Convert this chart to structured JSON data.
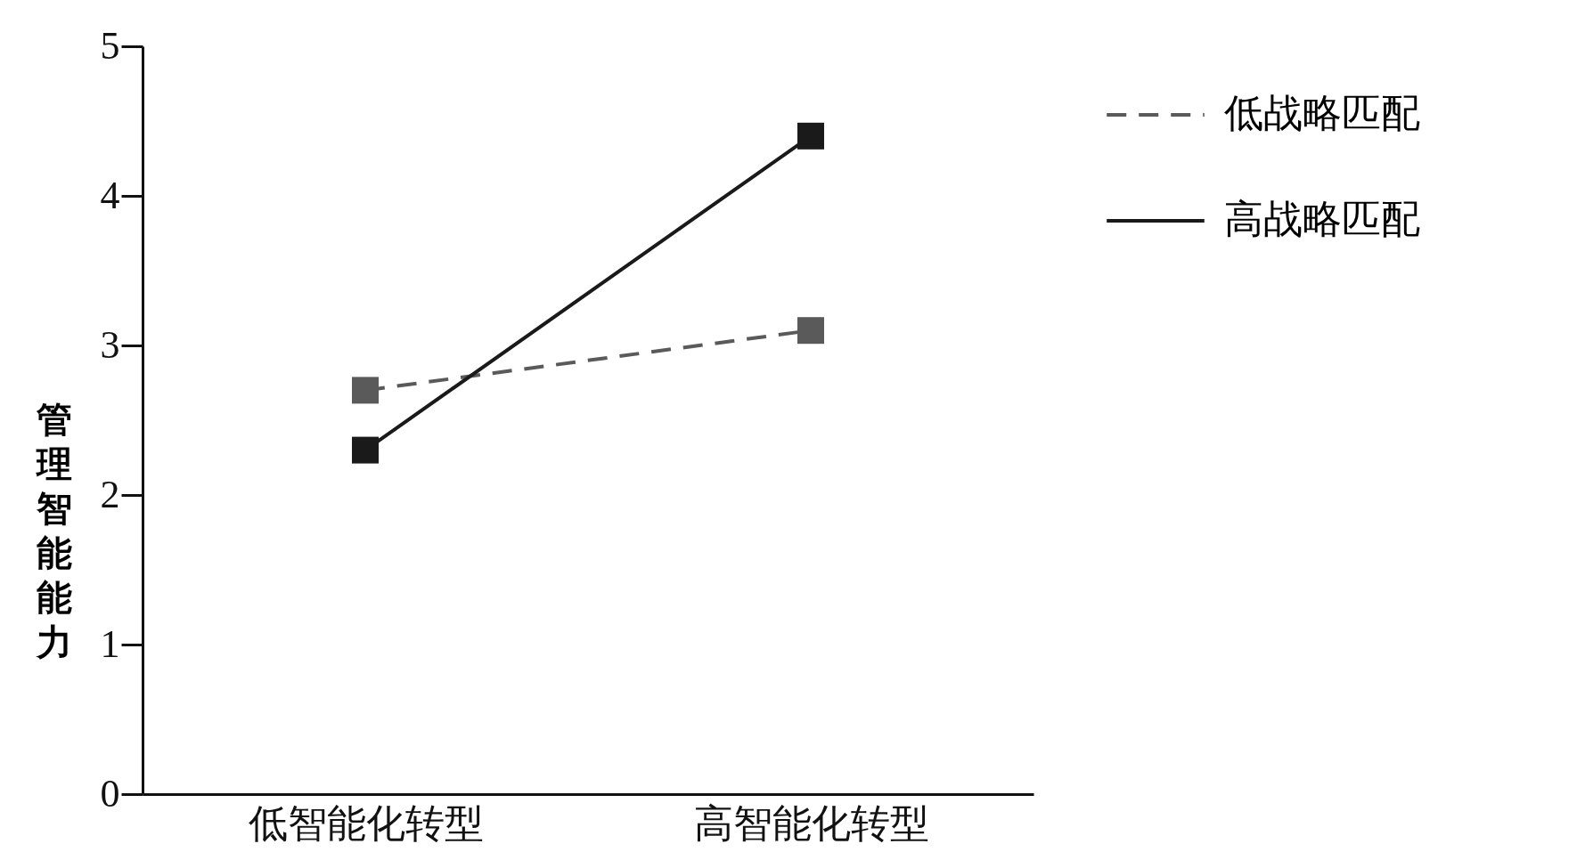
{
  "chart_data": {
    "type": "line",
    "ylabel": "管理智能能力",
    "categories": [
      "低智能化转型",
      "高智能化转型"
    ],
    "series": [
      {
        "name": "低战略匹配",
        "color": "#5a5a5a",
        "line_style": "dashed",
        "values": [
          2.7,
          3.1
        ]
      },
      {
        "name": "高战略匹配",
        "color": "#1a1a1a",
        "line_style": "solid",
        "values": [
          2.3,
          4.4
        ]
      }
    ],
    "ylim": [
      0,
      5
    ],
    "yticks": [
      0,
      1,
      2,
      3,
      4,
      5
    ],
    "grid": false,
    "legend": "right",
    "marker": "square"
  }
}
